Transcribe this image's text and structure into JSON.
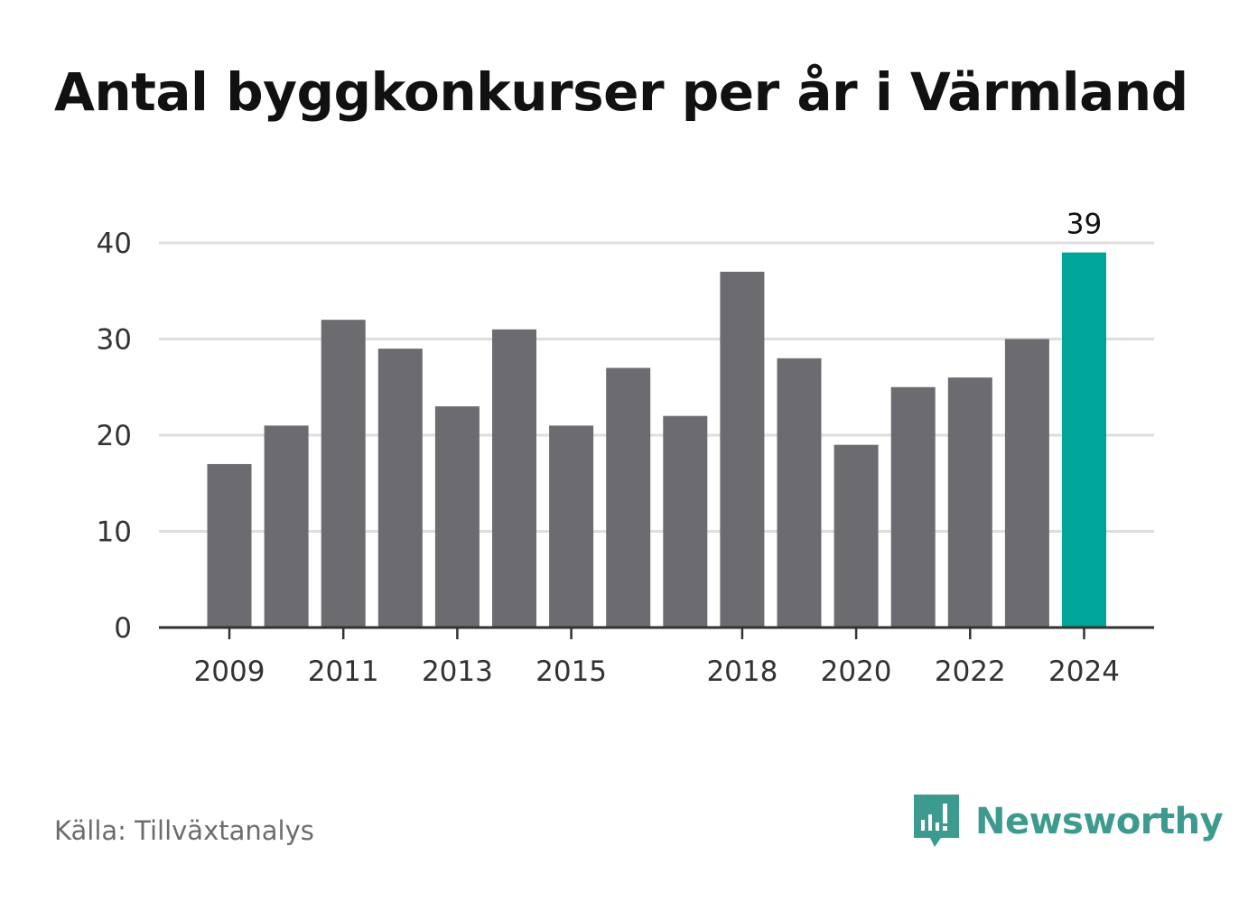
{
  "title": "Antal byggkonkurser per år i Värmland",
  "source": "Källa: Tillväxtanalys",
  "brand": {
    "name": "Newsworthy",
    "icon": "newsworthy-logo-icon",
    "color": "#3d9a8f"
  },
  "colors": {
    "bar": "#6c6b70",
    "highlight": "#00a59a",
    "grid": "#dedede",
    "axis": "#333333",
    "text": "#333333"
  },
  "chart_data": {
    "type": "bar",
    "title": "Antal byggkonkurser per år i Värmland",
    "categories": [
      "2009",
      "2010",
      "2011",
      "2012",
      "2013",
      "2014",
      "2015",
      "2016",
      "2017",
      "2018",
      "2019",
      "2020",
      "2021",
      "2022",
      "2023",
      "2024"
    ],
    "values": [
      17,
      21,
      32,
      29,
      23,
      31,
      21,
      27,
      22,
      37,
      28,
      19,
      25,
      26,
      30,
      39
    ],
    "x_tick_labels": [
      "2009",
      "2011",
      "2013",
      "2015",
      "2018",
      "2020",
      "2022",
      "2024"
    ],
    "y_ticks": [
      0,
      10,
      20,
      30,
      40
    ],
    "ylim": [
      0,
      40
    ],
    "highlight": {
      "category": "2024",
      "label": "39"
    },
    "grid": true,
    "legend": "none",
    "xlabel": "",
    "ylabel": ""
  }
}
